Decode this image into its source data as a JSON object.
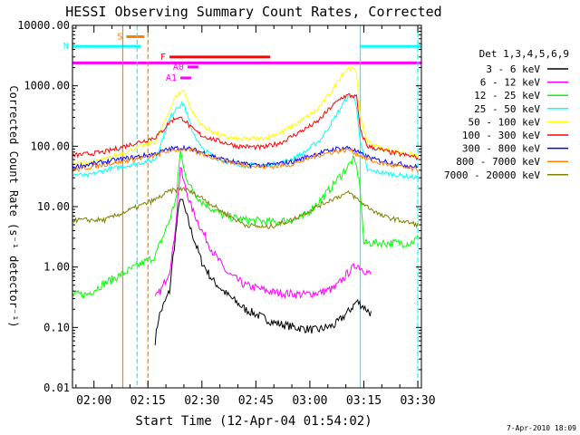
{
  "chart_data": {
    "type": "line",
    "title": "HESSI Observing Summary Count Rates, Corrected",
    "xlabel": "Start Time (12-Apr-04 01:54:02)",
    "ylabel": "Corrected Count Rate (s⁻¹ detector⁻¹)",
    "yscale": "log",
    "ylim": [
      0.01,
      10000
    ],
    "xlim": [
      "01:54:02",
      "03:31:00"
    ],
    "x_ticks": [
      "02:00",
      "02:15",
      "02:30",
      "02:45",
      "03:00",
      "03:15",
      "03:30"
    ],
    "y_ticks": [
      "0.01",
      "0.10",
      "1.00",
      "10.00",
      "100.00",
      "1000.00",
      "10000.00"
    ],
    "grid": false,
    "legend_position": "right",
    "legend_header": "Det 1,3,4,5,6,9",
    "footer_date": "7-Apr-2010 18:09",
    "series": [
      {
        "name": "3 - 6 keV",
        "color": "#000000",
        "points": [
          [
            "02:15",
            null
          ],
          [
            "02:17",
            0.06
          ],
          [
            "02:18",
            0.15
          ],
          [
            "02:21",
            0.4
          ],
          [
            "02:22",
            1.5
          ],
          [
            "02:23",
            5
          ],
          [
            "02:24",
            15
          ],
          [
            "02:25",
            10
          ],
          [
            "02:27",
            4
          ],
          [
            "02:30",
            1.2
          ],
          [
            "02:33",
            0.6
          ],
          [
            "02:37",
            0.35
          ],
          [
            "02:42",
            0.2
          ],
          [
            "02:50",
            0.12
          ],
          [
            "02:56",
            0.1
          ],
          [
            "03:02",
            0.09
          ],
          [
            "03:07",
            0.11
          ],
          [
            "03:11",
            0.19
          ],
          [
            "03:13",
            0.27
          ],
          [
            "03:15",
            0.22
          ],
          [
            "03:17",
            0.17
          ]
        ]
      },
      {
        "name": "6 - 12 keV",
        "color": "#ff00ff",
        "points": [
          [
            "02:17",
            0.3
          ],
          [
            "02:19",
            0.45
          ],
          [
            "02:21",
            0.9
          ],
          [
            "02:22",
            2
          ],
          [
            "02:23",
            8
          ],
          [
            "02:24",
            45
          ],
          [
            "02:25",
            25
          ],
          [
            "02:27",
            10
          ],
          [
            "02:30",
            4
          ],
          [
            "02:33",
            1.8
          ],
          [
            "02:37",
            0.8
          ],
          [
            "02:42",
            0.5
          ],
          [
            "02:50",
            0.38
          ],
          [
            "02:58",
            0.35
          ],
          [
            "03:03",
            0.38
          ],
          [
            "03:07",
            0.45
          ],
          [
            "03:11",
            0.85
          ],
          [
            "03:13",
            1.1
          ],
          [
            "03:15",
            0.9
          ],
          [
            "03:17",
            0.75
          ]
        ]
      },
      {
        "name": "12 - 25 keV",
        "color": "#00ff00",
        "points": [
          [
            "01:54",
            0.35
          ],
          [
            "01:58",
            0.35
          ],
          [
            "02:02",
            0.5
          ],
          [
            "02:17",
            1.5
          ],
          [
            "02:19",
            3
          ],
          [
            "02:21",
            6
          ],
          [
            "02:23",
            15
          ],
          [
            "02:24",
            90
          ],
          [
            "02:25",
            40
          ],
          [
            "02:27",
            20
          ],
          [
            "02:30",
            12
          ],
          [
            "02:36",
            7
          ],
          [
            "02:42",
            6
          ],
          [
            "02:50",
            5.5
          ],
          [
            "02:58",
            6.5
          ],
          [
            "03:04",
            15
          ],
          [
            "03:08",
            30
          ],
          [
            "03:11",
            50
          ],
          [
            "03:12",
            60
          ],
          [
            "03:13",
            45
          ],
          [
            "03:14",
            20
          ],
          [
            "03:15",
            2.5
          ],
          [
            "03:28",
            2.5
          ],
          [
            "03:30",
            3
          ]
        ]
      },
      {
        "name": "25 - 50 keV",
        "color": "#00ffff",
        "points": [
          [
            "01:54",
            35
          ],
          [
            "01:58",
            32
          ],
          [
            "02:03",
            40
          ],
          [
            "02:17",
            60
          ],
          [
            "02:19",
            130
          ],
          [
            "02:21",
            280
          ],
          [
            "02:23",
            450
          ],
          [
            "02:25",
            500
          ],
          [
            "02:27",
            200
          ],
          [
            "02:30",
            90
          ],
          [
            "02:35",
            60
          ],
          [
            "02:40",
            50
          ],
          [
            "02:47",
            48
          ],
          [
            "02:53",
            55
          ],
          [
            "02:58",
            75
          ],
          [
            "03:03",
            130
          ],
          [
            "03:07",
            300
          ],
          [
            "03:10",
            600
          ],
          [
            "03:12",
            700
          ],
          [
            "03:13",
            450
          ],
          [
            "03:14",
            120
          ],
          [
            "03:16",
            40
          ],
          [
            "03:22",
            35
          ],
          [
            "03:30",
            30
          ]
        ]
      },
      {
        "name": "50 - 100 keV",
        "color": "#ffff00",
        "points": [
          [
            "01:54",
            50
          ],
          [
            "02:03",
            60
          ],
          [
            "02:17",
            120
          ],
          [
            "02:19",
            200
          ],
          [
            "02:21",
            400
          ],
          [
            "02:23",
            700
          ],
          [
            "02:25",
            850
          ],
          [
            "02:27",
            400
          ],
          [
            "02:30",
            220
          ],
          [
            "02:35",
            150
          ],
          [
            "02:40",
            130
          ],
          [
            "02:47",
            135
          ],
          [
            "02:52",
            170
          ],
          [
            "02:57",
            250
          ],
          [
            "03:02",
            400
          ],
          [
            "03:06",
            800
          ],
          [
            "03:09",
            1600
          ],
          [
            "03:11",
            2000
          ],
          [
            "03:13",
            1700
          ],
          [
            "03:14",
            300
          ],
          [
            "03:16",
            120
          ],
          [
            "03:20",
            90
          ],
          [
            "03:30",
            70
          ]
        ]
      },
      {
        "name": "100 - 300 keV",
        "color": "#ff0000",
        "points": [
          [
            "01:54",
            70
          ],
          [
            "02:03",
            80
          ],
          [
            "02:17",
            140
          ],
          [
            "02:19",
            180
          ],
          [
            "02:21",
            250
          ],
          [
            "02:23",
            300
          ],
          [
            "02:25",
            280
          ],
          [
            "02:27",
            200
          ],
          [
            "02:30",
            150
          ],
          [
            "02:35",
            120
          ],
          [
            "02:40",
            100
          ],
          [
            "02:47",
            95
          ],
          [
            "02:52",
            115
          ],
          [
            "02:57",
            170
          ],
          [
            "03:02",
            250
          ],
          [
            "03:06",
            450
          ],
          [
            "03:09",
            650
          ],
          [
            "03:11",
            700
          ],
          [
            "03:13",
            650
          ],
          [
            "03:14",
            180
          ],
          [
            "03:16",
            100
          ],
          [
            "03:22",
            80
          ],
          [
            "03:30",
            65
          ]
        ]
      },
      {
        "name": "300 - 800 keV",
        "color": "#0000ff",
        "points": [
          [
            "01:54",
            45
          ],
          [
            "02:03",
            55
          ],
          [
            "02:17",
            75
          ],
          [
            "02:21",
            90
          ],
          [
            "02:25",
            95
          ],
          [
            "02:30",
            80
          ],
          [
            "02:36",
            60
          ],
          [
            "02:42",
            50
          ],
          [
            "02:48",
            48
          ],
          [
            "02:55",
            55
          ],
          [
            "03:02",
            75
          ],
          [
            "03:07",
            90
          ],
          [
            "03:11",
            95
          ],
          [
            "03:14",
            75
          ],
          [
            "03:18",
            60
          ],
          [
            "03:30",
            45
          ]
        ]
      },
      {
        "name": "800 - 7000 keV",
        "color": "#ff8000",
        "points": [
          [
            "01:54",
            40
          ],
          [
            "02:03",
            50
          ],
          [
            "02:17",
            70
          ],
          [
            "02:21",
            85
          ],
          [
            "02:25",
            90
          ],
          [
            "02:30",
            75
          ],
          [
            "02:36",
            58
          ],
          [
            "02:42",
            48
          ],
          [
            "02:48",
            45
          ],
          [
            "02:55",
            50
          ],
          [
            "03:02",
            70
          ],
          [
            "03:07",
            82
          ],
          [
            "03:11",
            88
          ],
          [
            "03:14",
            70
          ],
          [
            "03:18",
            55
          ],
          [
            "03:30",
            40
          ]
        ]
      },
      {
        "name": "7000 - 20000 keV",
        "color": "#808000",
        "points": [
          [
            "01:54",
            6
          ],
          [
            "02:03",
            6
          ],
          [
            "02:17",
            13
          ],
          [
            "02:21",
            18
          ],
          [
            "02:25",
            20
          ],
          [
            "02:30",
            14
          ],
          [
            "02:36",
            8
          ],
          [
            "02:42",
            5
          ],
          [
            "02:48",
            4.5
          ],
          [
            "02:55",
            6
          ],
          [
            "03:02",
            10
          ],
          [
            "03:07",
            14
          ],
          [
            "03:11",
            17
          ],
          [
            "03:14",
            12
          ],
          [
            "03:20",
            7
          ],
          [
            "03:30",
            5
          ]
        ]
      }
    ],
    "flag_bars": [
      {
        "label": "S",
        "color": "#ff8000",
        "y": 6500,
        "x_start": "02:09",
        "x_end": "02:14"
      },
      {
        "label": "N",
        "color": "#00ffff",
        "y": 4500,
        "x_start": "01:54",
        "x_end": "02:13"
      },
      {
        "label": "",
        "color": "#00ffff",
        "y": 4500,
        "x_start": "03:14",
        "x_end": "03:31"
      },
      {
        "label": "F",
        "color": "#ff0000",
        "y": 3000,
        "x_start": "02:21",
        "x_end": "02:49"
      },
      {
        "label": "",
        "color": "#ff00ff",
        "y": 2400,
        "x_start": "01:54",
        "x_end": "03:31"
      },
      {
        "label": "A0",
        "color": "#ff00ff",
        "y": 2050,
        "x_start": "02:26",
        "x_end": "02:29"
      },
      {
        "label": "A1",
        "color": "#ff00ff",
        "y": 1350,
        "x_start": "02:24",
        "x_end": "02:27"
      }
    ],
    "vertical_markers": [
      {
        "x": "01:54",
        "color": "#00ffff",
        "style": "dashed"
      },
      {
        "x": "02:08",
        "color": "#ff8000",
        "style": "solid"
      },
      {
        "x": "02:12",
        "color": "#00ffff",
        "style": "dashed"
      },
      {
        "x": "02:15",
        "color": "#ff8000",
        "style": "dashed"
      },
      {
        "x": "03:14",
        "color": "#00ffff",
        "style": "solid"
      },
      {
        "x": "03:30",
        "color": "#00ffff",
        "style": "dashed"
      }
    ]
  }
}
